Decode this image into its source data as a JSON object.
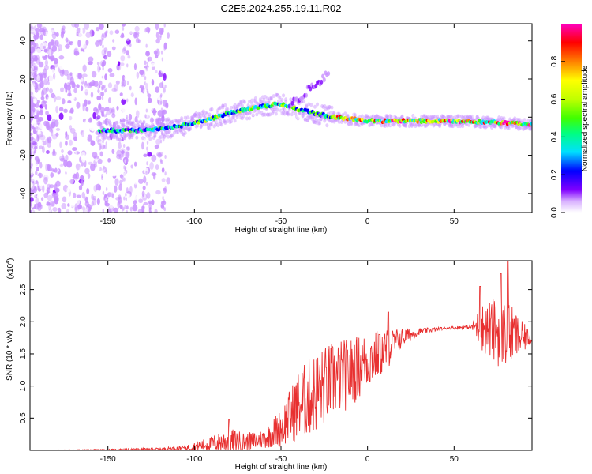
{
  "title": "C2E5.2024.255.19.11.R02",
  "chart_data": [
    {
      "type": "heatmap",
      "xlabel": "Height of straight line (km)",
      "ylabel": "Frequency (Hz)",
      "xlim": [
        -195,
        95
      ],
      "ylim": [
        -50,
        49
      ],
      "x_ticks": [
        -150,
        -100,
        -50,
        0,
        50
      ],
      "y_ticks": [
        -40,
        -20,
        0,
        20,
        40
      ],
      "colorbar": {
        "label": "Normalized spectral amplitude",
        "range": [
          0.0,
          1.0
        ],
        "ticks": [
          "0.0",
          "0.2",
          "0.4",
          "0.6",
          "0.8"
        ],
        "ticks_values": [
          0.0,
          0.2,
          0.4,
          0.6,
          0.8
        ],
        "colors": [
          "#ffffff",
          "#c890ff",
          "#8000ff",
          "#0000ff",
          "#00e0ff",
          "#00ff80",
          "#40ff00",
          "#c0ff00",
          "#ffff00",
          "#ff8000",
          "#ff0000",
          "#ff00c0"
        ]
      },
      "ridge": [
        {
          "x": -150,
          "y": -7
        },
        {
          "x": -130,
          "y": -7
        },
        {
          "x": -110,
          "y": -5
        },
        {
          "x": -95,
          "y": -2
        },
        {
          "x": -80,
          "y": 2
        },
        {
          "x": -65,
          "y": 5
        },
        {
          "x": -50,
          "y": 7
        },
        {
          "x": -40,
          "y": 4
        },
        {
          "x": -30,
          "y": 2
        },
        {
          "x": -20,
          "y": 0
        },
        {
          "x": 0,
          "y": -2
        },
        {
          "x": 20,
          "y": -2
        },
        {
          "x": 50,
          "y": -2
        },
        {
          "x": 80,
          "y": -3
        },
        {
          "x": 95,
          "y": -4
        }
      ]
    },
    {
      "type": "line",
      "xlabel": "Height of straight line (km)",
      "ylabel": "SNR (10 * v/v)",
      "y_multiplier": "(x10",
      "y_multiplier_exp": "4",
      "y_multiplier_close": ")",
      "xlim": [
        -195,
        95
      ],
      "ylim": [
        0,
        2.95
      ],
      "x_ticks": [
        -150,
        -100,
        -50,
        0,
        50
      ],
      "y_ticks": [
        0.5,
        1.0,
        1.5,
        2.0,
        2.5
      ],
      "line_color": "#e83030",
      "envelope": [
        {
          "x": -195,
          "base": 0.0,
          "amp": 0.0
        },
        {
          "x": -150,
          "base": 0.01,
          "amp": 0.01
        },
        {
          "x": -120,
          "base": 0.02,
          "amp": 0.02
        },
        {
          "x": -105,
          "base": 0.04,
          "amp": 0.04
        },
        {
          "x": -90,
          "base": 0.1,
          "amp": 0.12
        },
        {
          "x": -80,
          "base": 0.15,
          "amp": 0.2
        },
        {
          "x": -70,
          "base": 0.12,
          "amp": 0.15
        },
        {
          "x": -60,
          "base": 0.18,
          "amp": 0.15
        },
        {
          "x": -50,
          "base": 0.35,
          "amp": 0.3
        },
        {
          "x": -40,
          "base": 0.7,
          "amp": 0.55
        },
        {
          "x": -30,
          "base": 0.9,
          "amp": 0.65
        },
        {
          "x": -20,
          "base": 1.1,
          "amp": 0.6
        },
        {
          "x": -10,
          "base": 1.2,
          "amp": 0.55
        },
        {
          "x": 0,
          "base": 1.4,
          "amp": 0.45
        },
        {
          "x": 10,
          "base": 1.55,
          "amp": 0.35
        },
        {
          "x": 20,
          "base": 1.75,
          "amp": 0.15
        },
        {
          "x": 30,
          "base": 1.85,
          "amp": 0.05
        },
        {
          "x": 45,
          "base": 1.9,
          "amp": 0.02
        },
        {
          "x": 60,
          "base": 1.92,
          "amp": 0.03
        },
        {
          "x": 65,
          "base": 1.92,
          "amp": 0.35
        },
        {
          "x": 75,
          "base": 1.85,
          "amp": 0.55
        },
        {
          "x": 82,
          "base": 1.8,
          "amp": 0.5
        },
        {
          "x": 88,
          "base": 1.75,
          "amp": 0.3
        },
        {
          "x": 95,
          "base": 1.75,
          "amp": 0.08
        }
      ],
      "spikes": [
        {
          "x": -80,
          "y": 0.48
        },
        {
          "x": 12,
          "y": 2.15
        },
        {
          "x": 7,
          "y": 1.8
        },
        {
          "x": 65,
          "y": 2.55
        },
        {
          "x": 81,
          "y": 2.95
        },
        {
          "x": 77,
          "y": 2.75
        }
      ]
    }
  ]
}
